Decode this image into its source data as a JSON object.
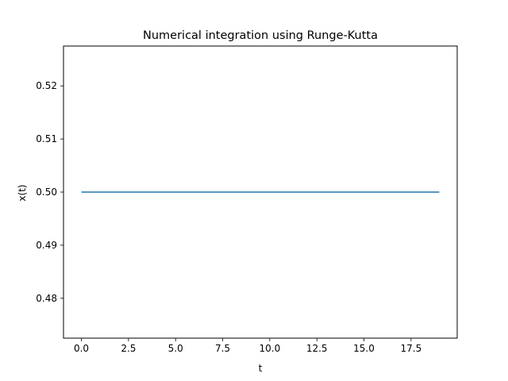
{
  "chart_data": {
    "type": "line",
    "title": "Numerical integration using Runge-Kutta",
    "xlabel": "t",
    "ylabel": "x(t)",
    "xlim": [
      -0.95,
      19.95
    ],
    "ylim": [
      0.4725,
      0.5275
    ],
    "xticks": [
      0.0,
      2.5,
      5.0,
      7.5,
      10.0,
      12.5,
      15.0,
      17.5
    ],
    "xtick_labels": [
      "0.0",
      "2.5",
      "5.0",
      "7.5",
      "10.0",
      "12.5",
      "15.0",
      "17.5"
    ],
    "yticks": [
      0.48,
      0.49,
      0.5,
      0.51,
      0.52
    ],
    "ytick_labels": [
      "0.48",
      "0.49",
      "0.50",
      "0.51",
      "0.52"
    ],
    "grid": false,
    "series": [
      {
        "color": "#1f77b4",
        "x": [
          0,
          19
        ],
        "y": [
          0.5,
          0.5
        ]
      }
    ]
  }
}
